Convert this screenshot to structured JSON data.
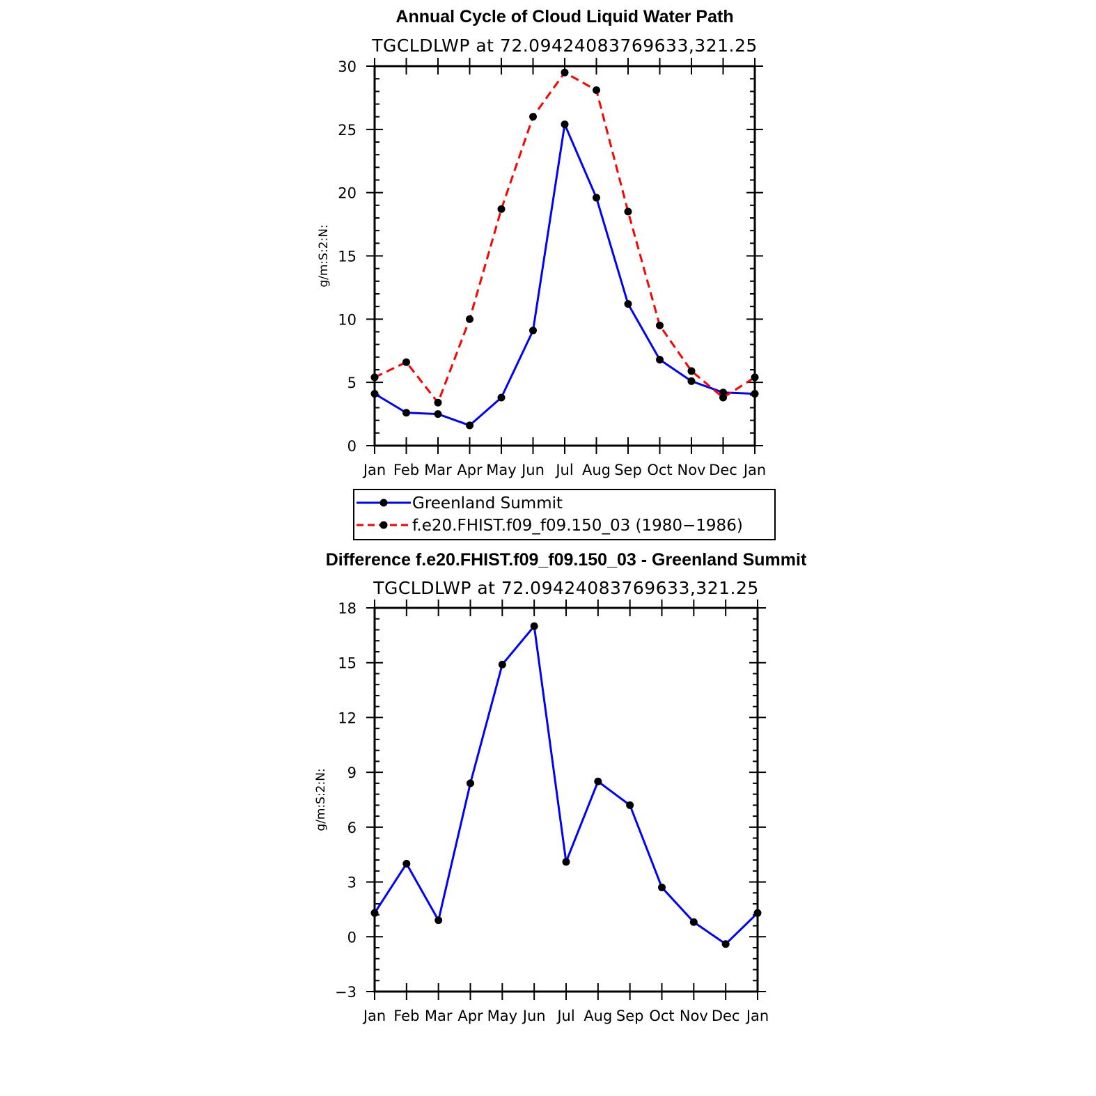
{
  "chart_data": [
    {
      "type": "line",
      "title": "Annual Cycle of Cloud Liquid Water Path",
      "subtitle": "TGCLDLWP  at  72.09424083769633,321.25",
      "xlabel": "",
      "ylabel": "g/m:S:2:N:",
      "categories": [
        "Jan",
        "Feb",
        "Mar",
        "Apr",
        "May",
        "Jun",
        "Jul",
        "Aug",
        "Sep",
        "Oct",
        "Nov",
        "Dec",
        "Jan"
      ],
      "ylim": [
        0,
        30
      ],
      "yticks": [
        0,
        5,
        10,
        15,
        20,
        25,
        30
      ],
      "ytick_labels": [
        "0",
        "5",
        "10",
        "15",
        "20",
        "25",
        "30"
      ],
      "series": [
        {
          "name": "Greenland Summit",
          "color": "#0000ff",
          "dash": "solid",
          "values": [
            4.1,
            2.6,
            2.5,
            1.6,
            3.8,
            9.1,
            25.4,
            19.6,
            11.2,
            6.8,
            5.1,
            4.2,
            4.1
          ]
        },
        {
          "name": "f.e20.FHIST.f09_f09.150_03 (1980−1986)",
          "color": "#ff0000",
          "dash": "dashed",
          "values": [
            5.4,
            6.6,
            3.4,
            10.0,
            18.7,
            26.0,
            29.5,
            28.1,
            18.5,
            9.5,
            5.9,
            3.8,
            5.4
          ]
        }
      ],
      "legend": {
        "placement": "below",
        "entries": [
          "Greenland Summit",
          "f.e20.FHIST.f09_f09.150_03 (1980−1986)"
        ]
      }
    },
    {
      "type": "line",
      "title": "Difference f.e20.FHIST.f09_f09.150_03 - Greenland Summit",
      "subtitle": "TGCLDLWP  at  72.09424083769633,321.25",
      "xlabel": "",
      "ylabel": "g/m:S:2:N:",
      "categories": [
        "Jan",
        "Feb",
        "Mar",
        "Apr",
        "May",
        "Jun",
        "Jul",
        "Aug",
        "Sep",
        "Oct",
        "Nov",
        "Dec",
        "Jan"
      ],
      "ylim": [
        -3,
        18
      ],
      "yticks": [
        -3,
        0,
        3,
        6,
        9,
        12,
        15,
        18
      ],
      "ytick_labels": [
        "−3",
        "0",
        "3",
        "6",
        "9",
        "12",
        "15",
        "18"
      ],
      "series": [
        {
          "name": "Difference",
          "color": "#0000ff",
          "dash": "solid",
          "values": [
            1.3,
            4.0,
            0.9,
            8.4,
            14.9,
            17.0,
            4.1,
            8.5,
            7.2,
            2.7,
            0.8,
            -0.4,
            1.3
          ]
        }
      ]
    }
  ]
}
